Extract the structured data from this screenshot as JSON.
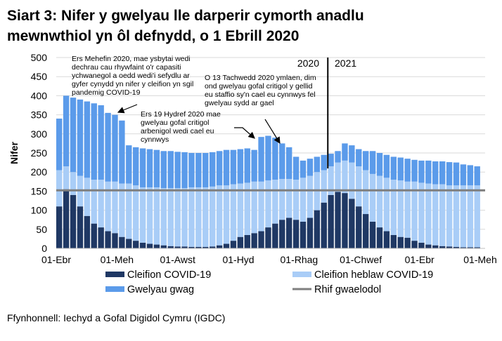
{
  "title_lines": [
    "Siart 3: Nifer y gwelyau lle darperir cymorth anadlu",
    "mewnwthiol yn ôl defnydd, o 1 Ebrill 2020"
  ],
  "source": "Ffynhonnell: Iechyd a Gofal Digidol Cymru (IGDC)",
  "colors": {
    "covid": "#1f3864",
    "non_covid": "#a9cdf7",
    "empty": "#5b9bea",
    "baseline": "#7f7f7f"
  },
  "annotations": {
    "june": [
      "Ers Mehefin 2020, mae ysbytai wedi",
      "dechrau cau rhywfaint o'r capasiti",
      "ychwanegol a oedd wedi'i sefydlu ar",
      "gyfer cynydd yn nifer y cleifion yn sgil",
      "pandemig COVID-19"
    ],
    "october": [
      "Ers 19 Hydref 2020 mae",
      "gwelyau gofal critigol",
      "arbenigol wedi cael eu",
      "cynnwys"
    ],
    "november": [
      "O 13 Tachwedd 2020 ymlaen, dim",
      "ond gwelyau gofal critigol y gellid",
      "eu staffio sy'n cael eu cynnwys fel",
      "gwelyau sydd ar gael"
    ],
    "year_left": "2020",
    "year_right": "2021"
  },
  "chart_data": {
    "type": "bar",
    "stacked": true,
    "ylabel": "Nifer",
    "xlabel": "",
    "ylim": [
      0,
      500
    ],
    "yticks": [
      0,
      50,
      100,
      150,
      200,
      250,
      300,
      350,
      400,
      450,
      500
    ],
    "grid": true,
    "legend_placement": "bottom",
    "x_start": "2020-04-01",
    "x_step_days": 7,
    "x_ticks": [
      {
        "label": "01-Ebr",
        "date": "2020-04-01"
      },
      {
        "label": "01-Meh",
        "date": "2020-06-01"
      },
      {
        "label": "01-Awst",
        "date": "2020-08-01"
      },
      {
        "label": "01-Hyd",
        "date": "2020-10-01"
      },
      {
        "label": "01-Rhag",
        "date": "2020-12-01"
      },
      {
        "label": "01-Chwef",
        "date": "2021-02-01"
      },
      {
        "label": "01-Ebr",
        "date": "2021-04-01"
      },
      {
        "label": "01-Meh",
        "date": "2021-06-01"
      }
    ],
    "year_divider_date": "2021-01-01",
    "series": [
      {
        "name": "Cleifion COVID-19",
        "values": [
          110,
          155,
          140,
          110,
          85,
          65,
          55,
          45,
          40,
          30,
          25,
          20,
          15,
          12,
          10,
          8,
          6,
          5,
          5,
          4,
          4,
          4,
          5,
          8,
          12,
          20,
          30,
          35,
          40,
          45,
          55,
          65,
          75,
          80,
          75,
          70,
          80,
          100,
          120,
          140,
          148,
          145,
          130,
          110,
          90,
          70,
          55,
          45,
          35,
          30,
          28,
          20,
          15,
          10,
          8,
          6,
          5,
          4,
          3,
          3,
          3
        ]
      },
      {
        "name": "Cleifion heblaw COVID-19",
        "values": [
          95,
          60,
          60,
          80,
          100,
          115,
          125,
          130,
          135,
          140,
          145,
          145,
          145,
          148,
          150,
          150,
          152,
          153,
          153,
          156,
          156,
          156,
          157,
          157,
          153,
          148,
          140,
          137,
          135,
          130,
          123,
          115,
          107,
          102,
          105,
          115,
          110,
          100,
          85,
          75,
          77,
          85,
          95,
          105,
          115,
          125,
          135,
          140,
          145,
          148,
          147,
          155,
          157,
          160,
          160,
          162,
          160,
          161,
          162,
          162,
          162
        ]
      },
      {
        "name": "Gwelyau gwag",
        "values": [
          135,
          185,
          195,
          200,
          200,
          200,
          195,
          180,
          175,
          165,
          100,
          100,
          102,
          100,
          98,
          97,
          97,
          95,
          94,
          90,
          90,
          90,
          90,
          90,
          93,
          90,
          90,
          90,
          83,
          117,
          117,
          110,
          93,
          83,
          60,
          45,
          45,
          40,
          40,
          33,
          30,
          45,
          45,
          45,
          50,
          60,
          60,
          60,
          60,
          60,
          60,
          57,
          58,
          60,
          60,
          60,
          61,
          60,
          55,
          53,
          50
        ]
      },
      {
        "name": "Rhif gwaelodol",
        "value": 152
      }
    ]
  }
}
